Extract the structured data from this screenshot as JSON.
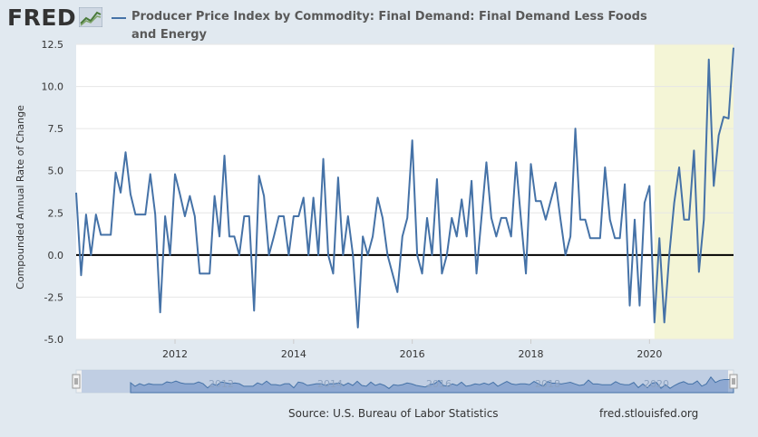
{
  "branding": {
    "logo_text": "FRED"
  },
  "header": {
    "series_title": "Producer Price Index by Commodity: Final Demand: Final Demand Less Foods and Energy"
  },
  "footer": {
    "source": "Source: U.S. Bureau of Labor Statistics",
    "url": "fred.stlouisfed.org"
  },
  "colors": {
    "line": "#4572a7",
    "recession": "#f4f5d6",
    "background": "#e1e9f0",
    "plot": "#ffffff",
    "zero_line": "#000000"
  },
  "chart_data": {
    "type": "line",
    "title": "Producer Price Index by Commodity: Final Demand: Final Demand Less Foods and Energy",
    "xlabel": "",
    "ylabel": "Compounded Annual Rate of Change",
    "ylim": [
      -5.0,
      12.5
    ],
    "yticks": [
      "12.5",
      "10.0",
      "7.5",
      "5.0",
      "2.5",
      "0.0",
      "-2.5",
      "-5.0"
    ],
    "xticks": [
      "2012",
      "2014",
      "2016",
      "2018",
      "2020"
    ],
    "xlim": [
      "2010-05",
      "2021-06"
    ],
    "grid": true,
    "zero_line": true,
    "recession_shading": {
      "start": "2020-02",
      "end": "2021-06"
    },
    "navigator_labels": [
      "2012",
      "2014",
      "2016",
      "2018",
      "2020"
    ],
    "series": [
      {
        "name": "Final Demand Less Foods and Energy",
        "start": "2010-05",
        "frequency": "monthly",
        "values": [
          3.7,
          -1.2,
          2.4,
          0.0,
          2.4,
          1.2,
          1.2,
          1.2,
          4.9,
          3.7,
          6.1,
          3.6,
          2.4,
          2.4,
          2.4,
          4.8,
          2.4,
          -3.4,
          2.3,
          0.0,
          4.8,
          3.6,
          2.3,
          3.5,
          2.3,
          -1.1,
          -1.1,
          -1.1,
          3.5,
          1.1,
          5.9,
          1.1,
          1.1,
          0.0,
          2.3,
          2.3,
          -3.3,
          4.7,
          3.5,
          0.0,
          1.1,
          2.3,
          2.3,
          0.0,
          2.3,
          2.3,
          3.4,
          0.0,
          3.4,
          0.0,
          5.7,
          0.0,
          -1.1,
          4.6,
          0.0,
          2.3,
          0.0,
          -4.3,
          1.1,
          0.0,
          1.1,
          3.4,
          2.2,
          0.0,
          -1.1,
          -2.2,
          1.1,
          2.2,
          6.8,
          0.0,
          -1.1,
          2.2,
          0.0,
          4.5,
          -1.1,
          0.0,
          2.2,
          1.1,
          3.3,
          1.1,
          4.4,
          -1.1,
          2.2,
          5.5,
          2.2,
          1.1,
          2.2,
          2.2,
          1.1,
          5.5,
          2.1,
          -1.1,
          5.4,
          3.2,
          3.2,
          2.1,
          3.2,
          4.3,
          2.1,
          0.0,
          1.1,
          7.5,
          2.1,
          2.1,
          1.0,
          1.0,
          1.0,
          5.2,
          2.1,
          1.0,
          1.0,
          4.2,
          -3.0,
          2.1,
          -3.0,
          3.1,
          4.1,
          -4.0,
          1.0,
          -4.0,
          0.0,
          3.1,
          5.2,
          2.1,
          2.1,
          6.2,
          -1.0,
          2.1,
          11.6,
          4.1,
          7.1,
          8.2,
          8.1,
          12.3
        ]
      }
    ]
  }
}
